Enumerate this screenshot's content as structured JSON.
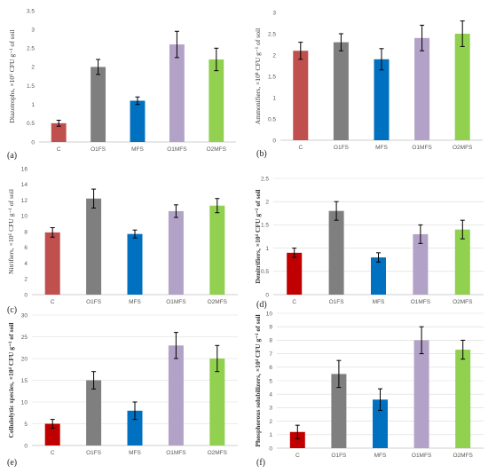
{
  "colors": {
    "C": "#c0504d",
    "C_dark": "#c00000",
    "O1FS": "#7f7f7f",
    "MFS": "#0070c0",
    "O1MFS": "#b3a2c7",
    "O2MFS": "#92d050"
  },
  "chart_data": [
    {
      "type": "bar",
      "panel_label": "(a)",
      "ylabel": "Diazotrophs, ×10⁶ CFU g⁻¹ of soil",
      "ylabel_bold": false,
      "categories": [
        "C",
        "O1FS",
        "MFS",
        "O1MFS",
        "O2MFS"
      ],
      "values": [
        0.5,
        2.0,
        1.1,
        2.6,
        2.2
      ],
      "errors": [
        0.08,
        0.2,
        0.1,
        0.35,
        0.3
      ],
      "ylim": [
        0,
        3.5
      ],
      "yticks": [
        "0",
        "0.5",
        "1",
        "1.5",
        "2",
        "2.5",
        "3",
        "3.5"
      ],
      "grid": false,
      "color_set": [
        "C",
        "O1FS",
        "MFS",
        "O1MFS",
        "O2MFS"
      ]
    },
    {
      "type": "bar",
      "panel_label": "(b)",
      "ylabel": "Ammonifiers, ×10⁸ CFU g⁻¹ of soil",
      "ylabel_bold": false,
      "categories": [
        "C",
        "O1FS",
        "MFS",
        "O1MFS",
        "O2MFS"
      ],
      "values": [
        2.1,
        2.3,
        1.9,
        2.4,
        2.5
      ],
      "errors": [
        0.2,
        0.2,
        0.25,
        0.3,
        0.3
      ],
      "ylim": [
        0,
        3
      ],
      "yticks": [
        "0",
        "0.5",
        "1",
        "1.5",
        "2",
        "2.5",
        "3"
      ],
      "grid": false,
      "color_set": [
        "C",
        "O1FS",
        "MFS",
        "O1MFS",
        "O2MFS"
      ]
    },
    {
      "type": "bar",
      "panel_label": "(c)",
      "ylabel": "Nitrifiers, ×10⁶ CFU g⁻¹ of soil",
      "ylabel_bold": false,
      "categories": [
        "C",
        "O1FS",
        "MFS",
        "O1MFS",
        "O2MFS"
      ],
      "values": [
        7.9,
        12.2,
        7.7,
        10.6,
        11.3
      ],
      "errors": [
        0.6,
        1.2,
        0.5,
        0.8,
        0.9
      ],
      "ylim": [
        0,
        16
      ],
      "yticks": [
        "0",
        "2",
        "4",
        "6",
        "8",
        "10",
        "12",
        "14",
        "16"
      ],
      "grid": false,
      "color_set": [
        "C",
        "O1FS",
        "MFS",
        "O1MFS",
        "O2MFS"
      ]
    },
    {
      "type": "bar",
      "panel_label": "(d)",
      "ylabel": "Denitrifiers, ×10⁴ CFU g⁻¹ of soil",
      "ylabel_bold": true,
      "categories": [
        "C",
        "O1FS",
        "MFS",
        "O1MFS",
        "O2MFS"
      ],
      "values": [
        0.9,
        1.8,
        0.8,
        1.3,
        1.4
      ],
      "errors": [
        0.1,
        0.2,
        0.1,
        0.2,
        0.2
      ],
      "ylim": [
        0,
        2.5
      ],
      "yticks": [
        "0",
        "0.5",
        "1",
        "1.5",
        "2",
        "2.5"
      ],
      "grid": true,
      "color_set": [
        "C_dark",
        "O1FS",
        "MFS",
        "O1MFS",
        "O2MFS"
      ]
    },
    {
      "type": "bar",
      "panel_label": "(e)",
      "ylabel": "Cellulolytic species, ×10⁴ CFU g⁻¹ of soil",
      "ylabel_bold": true,
      "categories": [
        "C",
        "O1FS",
        "MFS",
        "O1MFS",
        "O2MFS"
      ],
      "values": [
        5,
        15,
        8,
        23,
        20
      ],
      "errors": [
        1,
        2,
        2,
        3,
        3
      ],
      "ylim": [
        0,
        30
      ],
      "yticks": [
        "0",
        "5",
        "10",
        "15",
        "20",
        "25",
        "30"
      ],
      "grid": true,
      "color_set": [
        "C_dark",
        "O1FS",
        "MFS",
        "O1MFS",
        "O2MFS"
      ]
    },
    {
      "type": "bar",
      "panel_label": "(f)",
      "ylabel": "Phosphorous solubilizers, ×10⁴ CFU g⁻¹ of soil",
      "ylabel_bold": true,
      "categories": [
        "C",
        "O1FS",
        "MFS",
        "O1MFS",
        "O2MFS"
      ],
      "values": [
        1.2,
        5.5,
        3.6,
        8.0,
        7.3
      ],
      "errors": [
        0.5,
        1.0,
        0.8,
        1.0,
        0.7
      ],
      "ylim": [
        0,
        10
      ],
      "yticks": [
        "0",
        "1",
        "2",
        "3",
        "4",
        "5",
        "6",
        "7",
        "8",
        "9",
        "10"
      ],
      "grid": true,
      "color_set": [
        "C_dark",
        "O1FS",
        "MFS",
        "O1MFS",
        "O2MFS"
      ]
    }
  ]
}
